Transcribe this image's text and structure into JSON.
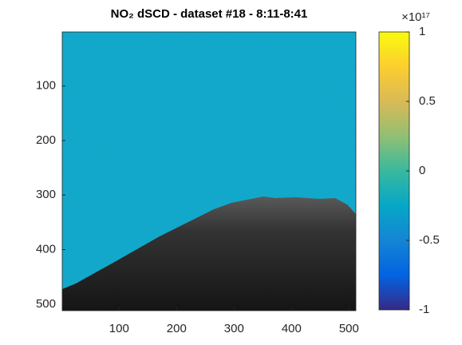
{
  "chart_data": {
    "type": "image",
    "title": "NO₂ dSCD - dataset #18 - 8:11-8:41",
    "xlim": [
      1,
      512
    ],
    "ylim": [
      1,
      512
    ],
    "y_reversed": true,
    "xticks": [
      100,
      200,
      300,
      400,
      500
    ],
    "yticks": [
      100,
      200,
      300,
      400,
      500
    ],
    "field_value": -0.25,
    "colormap": "parula",
    "clim": [
      -1,
      1
    ],
    "cticks": [
      -1,
      -0.5,
      0,
      0.5,
      1
    ],
    "colorbar_multiplier": "×10¹⁷"
  }
}
